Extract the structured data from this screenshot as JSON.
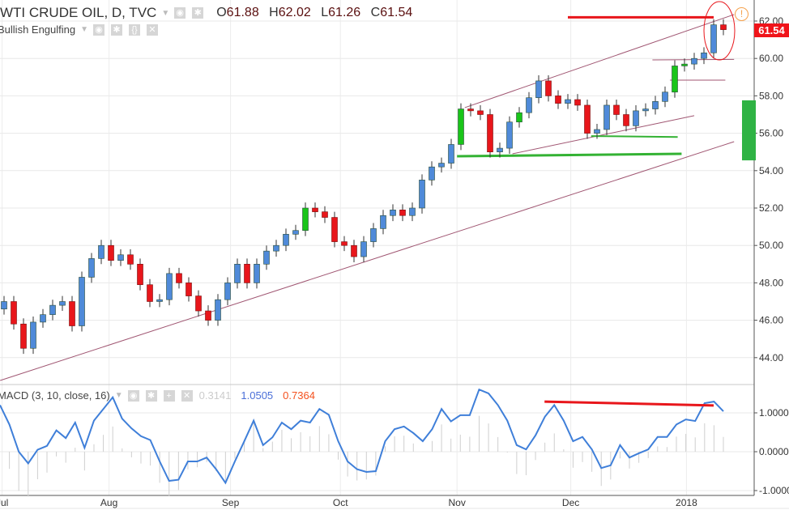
{
  "header": {
    "title": "WTI CRUDE OIL, D, TVC",
    "open_label": "O",
    "open": "61.88",
    "high_label": "H",
    "high": "62.02",
    "low_label": "L",
    "low": "61.26",
    "close_label": "C",
    "close": "61.54",
    "alert_icon": "!"
  },
  "indicator": {
    "name": "Bullish Engulfing"
  },
  "macd_legend": {
    "name": "MACD (3, 10, close, 16)",
    "hist": "0.3141",
    "macd": "1.0505",
    "signal": "0.7364"
  },
  "price_tag": "61.54",
  "colors": {
    "up": "#4f8ad9",
    "up_green": "#19c519",
    "down": "#e8161b",
    "line": "#3f7fd9",
    "trend": "#a05672",
    "green": "#33b233",
    "red": "#e8161b"
  },
  "chart_data": {
    "type": "candlestick",
    "price_axis": {
      "min": 42.5,
      "max": 63,
      "ticks": [
        "62.00",
        "60.00",
        "58.00",
        "56.00",
        "54.00",
        "52.00",
        "50.00",
        "48.00",
        "46.00",
        "44.00"
      ]
    },
    "macd_axis": {
      "ticks": [
        "1.0000",
        "0.0000",
        "-1.0000"
      ]
    },
    "x_labels": [
      {
        "t": -0.2,
        "label": "Jul"
      },
      {
        "t": 10.8,
        "label": "Aug"
      },
      {
        "t": 23.3,
        "label": "Sep"
      },
      {
        "t": 34.6,
        "label": "Oct"
      },
      {
        "t": 46.6,
        "label": "Nov"
      },
      {
        "t": 58.3,
        "label": "Dec"
      },
      {
        "t": 70.2,
        "label": "2018"
      }
    ],
    "first_open": 46.6,
    "closes": [
      47.0,
      45.8,
      44.5,
      45.9,
      46.3,
      46.8,
      47.0,
      45.7,
      48.3,
      49.3,
      50.0,
      49.2,
      49.5,
      49.0,
      47.9,
      47.0,
      47.1,
      48.5,
      48.0,
      47.3,
      46.5,
      46.0,
      47.1,
      48.0,
      49.0,
      48.0,
      49.0,
      49.7,
      50.0,
      50.6,
      50.8,
      52.0,
      51.8,
      51.5,
      50.2,
      50.0,
      49.4,
      50.2,
      50.9,
      51.6,
      51.9,
      51.6,
      52.0,
      53.5,
      54.2,
      54.4,
      55.4,
      57.3,
      57.2,
      57.0,
      55.0,
      55.2,
      56.6,
      57.1,
      57.9,
      58.8,
      58.0,
      57.6,
      57.8,
      57.5,
      56.0,
      56.2,
      57.5,
      57.0,
      56.4,
      57.2,
      57.3,
      57.7,
      58.2,
      59.6,
      59.7,
      60.0,
      60.3,
      61.8,
      61.54
    ],
    "green_candles": [
      31,
      47,
      53,
      69,
      70
    ],
    "macd": [
      1.2,
      0.7,
      0.0,
      -0.3,
      0.05,
      0.15,
      0.55,
      0.35,
      0.75,
      0.1,
      0.8,
      1.1,
      1.4,
      0.85,
      0.6,
      0.4,
      0.3,
      -0.25,
      -0.75,
      -0.72,
      -0.25,
      -0.25,
      -0.15,
      -0.45,
      -0.8,
      -0.25,
      0.27,
      0.8,
      0.17,
      0.37,
      0.75,
      0.58,
      0.8,
      0.75,
      1.1,
      0.95,
      0.27,
      -0.25,
      -0.45,
      -0.52,
      -0.5,
      0.27,
      0.58,
      0.65,
      0.48,
      0.27,
      0.58,
      1.1,
      0.78,
      0.94,
      0.94,
      1.6,
      1.5,
      1.2,
      0.8,
      0.17,
      0.06,
      0.42,
      0.9,
      1.2,
      0.8,
      0.27,
      0.38,
      0.06,
      -0.42,
      -0.35,
      0.17,
      -0.15,
      -0.04,
      0.06,
      0.38,
      0.38,
      0.7,
      0.83,
      0.79,
      1.25,
      1.29,
      1.04
    ],
    "trendlines": [
      {
        "kind": "channel-lower",
        "t": [
          -0.4,
          75.1
        ],
        "p": [
          42.78,
          55.55
        ],
        "color": "trend"
      },
      {
        "kind": "channel-upper",
        "t": [
          47.4,
          75.1
        ],
        "p": [
          57.37,
          62.35
        ],
        "color": "trend"
      },
      {
        "kind": "channel-mid",
        "t": [
          52.3,
          71
        ],
        "p": [
          54.9,
          56.94
        ],
        "color": "trend"
      },
      {
        "kind": "support-thick",
        "t": [
          46.6,
          69.7
        ],
        "p": [
          54.77,
          54.9
        ],
        "color": "green",
        "w": 3
      },
      {
        "kind": "support-thin",
        "t": [
          60.4,
          69.3
        ],
        "p": [
          55.85,
          55.8
        ],
        "color": "green",
        "w": 2
      },
      {
        "kind": "level-60",
        "t": [
          66.7,
          75.1
        ],
        "p": [
          59.92,
          59.95
        ],
        "color": "trend"
      },
      {
        "kind": "level-58.8",
        "t": [
          68.5,
          74.2
        ],
        "p": [
          58.84,
          58.84
        ],
        "color": "trend"
      },
      {
        "kind": "resistance",
        "t": [
          58,
          73
        ],
        "p": [
          62.2,
          62.2
        ],
        "color": "red",
        "w": 3
      }
    ],
    "zone": {
      "p": [
        54.55,
        57.76
      ]
    },
    "macd_line": {
      "t": [
        55.6,
        73
      ],
      "v": [
        1.29,
        1.19
      ]
    }
  }
}
